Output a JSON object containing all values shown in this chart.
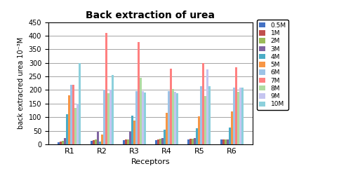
{
  "title": "Back extraction of urea",
  "xlabel": "Receptors",
  "ylabel": "back extracred urea 10⁻³M",
  "receptors": [
    "R1",
    "R2",
    "R3",
    "R4",
    "R5",
    "R6"
  ],
  "concentrations": [
    "0.5M",
    "1M",
    "2M",
    "3M",
    "4M",
    "5M",
    "6M",
    "7M",
    "8M",
    "9M",
    "10M"
  ],
  "colors": [
    "#4472C4",
    "#C0504D",
    "#9BBB59",
    "#8064A2",
    "#4BACC6",
    "#F79646",
    "#9DC3E6",
    "#FF8080",
    "#AFDBA0",
    "#C5C5F0",
    "#8CD0DC"
  ],
  "data": {
    "0.5M": [
      8,
      12,
      15,
      15,
      18,
      18
    ],
    "1M": [
      10,
      15,
      18,
      18,
      20,
      18
    ],
    "2M": [
      12,
      18,
      18,
      20,
      20,
      18
    ],
    "3M": [
      22,
      45,
      45,
      22,
      22,
      18
    ],
    "4M": [
      110,
      10,
      105,
      55,
      58,
      63
    ],
    "5M": [
      180,
      37,
      88,
      115,
      103,
      122
    ],
    "6M": [
      220,
      200,
      195,
      195,
      215,
      210
    ],
    "7M": [
      220,
      410,
      378,
      280,
      300,
      285
    ],
    "8M": [
      133,
      188,
      245,
      204,
      178,
      193
    ],
    "9M": [
      150,
      200,
      195,
      193,
      275,
      210
    ],
    "10M": [
      300,
      255,
      192,
      188,
      215,
      210
    ]
  },
  "ylim": [
    0,
    450
  ],
  "yticks": [
    0,
    50,
    100,
    150,
    200,
    250,
    300,
    350,
    400,
    450
  ],
  "figsize": [
    4.93,
    2.64
  ],
  "dpi": 100
}
